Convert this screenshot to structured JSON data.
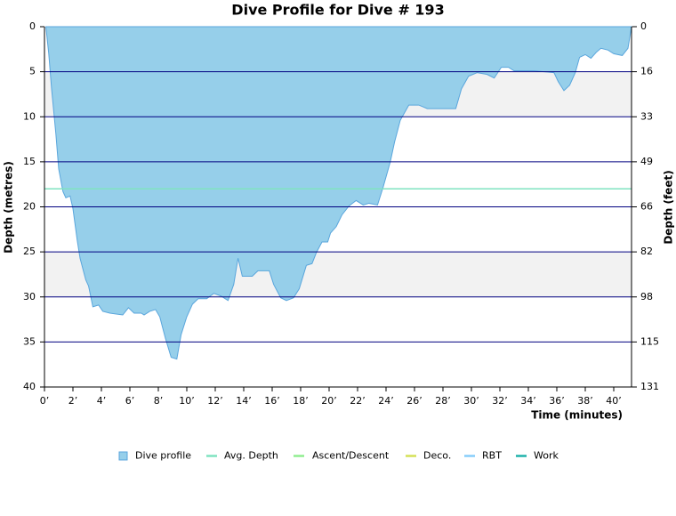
{
  "chart_data": {
    "type": "area",
    "title": "Dive Profile for Dive # 193",
    "x_label": "Time (minutes)",
    "y_label": "Depth (metres)",
    "y2_label": "Depth (feet)",
    "y_inverted": true,
    "grid": true,
    "xlim": [
      0,
      41.25
    ],
    "xticks": [
      {
        "value": 0,
        "label": "0’"
      },
      {
        "value": 2,
        "label": "2’"
      },
      {
        "value": 4,
        "label": "4’"
      },
      {
        "value": 6,
        "label": "6’"
      },
      {
        "value": 8,
        "label": "8’"
      },
      {
        "value": 10,
        "label": "10’"
      },
      {
        "value": 12,
        "label": "12’"
      },
      {
        "value": 14,
        "label": "14’"
      },
      {
        "value": 16,
        "label": "16’"
      },
      {
        "value": 18,
        "label": "18’"
      },
      {
        "value": 20,
        "label": "20’"
      },
      {
        "value": 22,
        "label": "22’"
      },
      {
        "value": 24,
        "label": "24’"
      },
      {
        "value": 26,
        "label": "26’"
      },
      {
        "value": 28,
        "label": "28’"
      },
      {
        "value": 30,
        "label": "30’"
      },
      {
        "value": 32,
        "label": "32’"
      },
      {
        "value": 34,
        "label": "34’"
      },
      {
        "value": 36,
        "label": "36’"
      },
      {
        "value": 38,
        "label": "38’"
      },
      {
        "value": 40,
        "label": "40’"
      }
    ],
    "ylim": [
      0,
      40
    ],
    "yticks": [
      0,
      5,
      10,
      15,
      20,
      25,
      30,
      35,
      40
    ],
    "y2lim": [
      0,
      131.2
    ],
    "y2ticks": [
      0,
      {
        "value": 16.4,
        "label": "16"
      },
      {
        "value": 32.8,
        "label": "33"
      },
      {
        "value": 49.2,
        "label": "49"
      },
      {
        "value": 65.6,
        "label": "66"
      },
      82,
      {
        "value": 98.4,
        "label": "98"
      },
      {
        "value": 114.8,
        "label": "115"
      },
      {
        "value": 131.2,
        "label": "131"
      }
    ],
    "series": [
      {
        "name": "Dive profile",
        "color": "#96cfea",
        "x": [
          0.1,
          0.3,
          0.5,
          0.8,
          1.0,
          1.3,
          1.5,
          1.8,
          2.0,
          2.3,
          2.5,
          2.9,
          3.1,
          3.4,
          3.8,
          4.1,
          4.6,
          5.5,
          5.9,
          6.3,
          6.8,
          7.0,
          7.4,
          7.8,
          8.1,
          8.5,
          8.9,
          9.3,
          9.6,
          10.0,
          10.4,
          10.8,
          11.4,
          11.9,
          12.4,
          12.9,
          13.3,
          13.6,
          13.9,
          14.6,
          15.0,
          15.8,
          16.1,
          16.6,
          17.0,
          17.5,
          17.9,
          18.4,
          18.8,
          19.1,
          19.5,
          19.9,
          20.1,
          20.5,
          20.9,
          21.4,
          21.9,
          22.4,
          22.8,
          23.4,
          23.8,
          24.3,
          24.6,
          25.0,
          25.6,
          26.3,
          26.9,
          28.9,
          29.3,
          29.8,
          30.4,
          31.1,
          31.6,
          32.1,
          32.6,
          33.0,
          34.4,
          35.8,
          36.1,
          36.5,
          36.9,
          37.3,
          37.6,
          38.0,
          38.4,
          38.8,
          39.1,
          39.6,
          40.0,
          40.6,
          41.0,
          41.25
        ],
        "values": [
          0,
          3,
          6.9,
          11.9,
          15.8,
          18.3,
          19,
          18.8,
          20.2,
          23.7,
          25.7,
          28.1,
          28.8,
          31.1,
          30.9,
          31.6,
          31.8,
          32,
          31.2,
          31.8,
          31.8,
          32,
          31.6,
          31.4,
          32.2,
          34.6,
          36.7,
          36.9,
          34.2,
          32.2,
          30.8,
          30.2,
          30.2,
          29.6,
          29.9,
          30.4,
          28.6,
          25.7,
          27.7,
          27.7,
          27.1,
          27.1,
          28.6,
          30.1,
          30.4,
          30.1,
          29.1,
          26.5,
          26.3,
          25.1,
          23.9,
          23.9,
          22.9,
          22.2,
          20.9,
          19.9,
          19.3,
          19.8,
          19.6,
          19.8,
          17.8,
          15,
          12.8,
          10.4,
          8.7,
          8.7,
          9.1,
          9.1,
          6.9,
          5.5,
          5.1,
          5.3,
          5.7,
          4.5,
          4.5,
          4.9,
          4.9,
          5.1,
          6.1,
          7.1,
          6.5,
          5.1,
          3.4,
          3.1,
          3.5,
          2.8,
          2.4,
          2.6,
          3,
          3.2,
          2.4,
          0
        ]
      },
      {
        "name": "Avg. Depth",
        "color": "#7fe3c0",
        "values": [
          18
        ]
      },
      {
        "name": "Ascent/Descent",
        "color": "#90ee90"
      },
      {
        "name": "Deco.",
        "color": "#d4e157"
      },
      {
        "name": "RBT",
        "color": "#87cefa"
      },
      {
        "name": "Work",
        "color": "#20b2aa"
      }
    ]
  }
}
